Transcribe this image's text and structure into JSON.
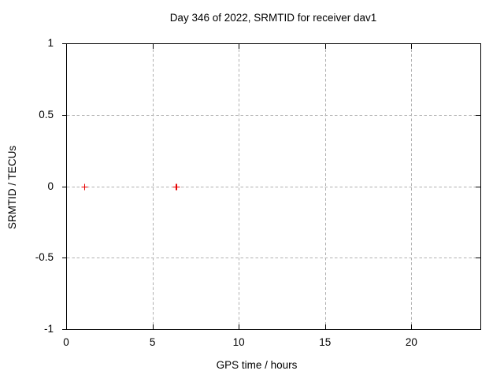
{
  "window": {
    "background": "#ffffff"
  },
  "chart_data": {
    "type": "scatter",
    "title": "Day 346 of 2022, SRMTID for receiver dav1",
    "xlabel": "GPS time / hours",
    "ylabel": "SRMTID / TECUs",
    "xlim": [
      0,
      24
    ],
    "ylim": [
      -1,
      1
    ],
    "xticks": {
      "values": [
        0,
        5,
        10,
        15,
        20
      ],
      "labels": [
        "0",
        "5",
        "10",
        "15",
        "20"
      ]
    },
    "yticks": {
      "values": [
        -1,
        -0.5,
        0,
        0.5,
        1
      ],
      "labels": [
        "-1",
        "-0.5",
        "0",
        "0.5",
        "1"
      ]
    },
    "grid": "dashed",
    "legend_position": "none",
    "series": [
      {
        "name": "SRMTID",
        "marker": "plus",
        "color": "#e60000",
        "points": [
          {
            "x": 1.05,
            "y": -0.005
          },
          {
            "x": 6.33,
            "y": -0.005
          },
          {
            "x": 6.4,
            "y": -0.005
          }
        ]
      }
    ],
    "colors": {
      "axis": "#000000",
      "grid": "#b0b0b0",
      "text": "#000000",
      "background": "#ffffff"
    }
  }
}
